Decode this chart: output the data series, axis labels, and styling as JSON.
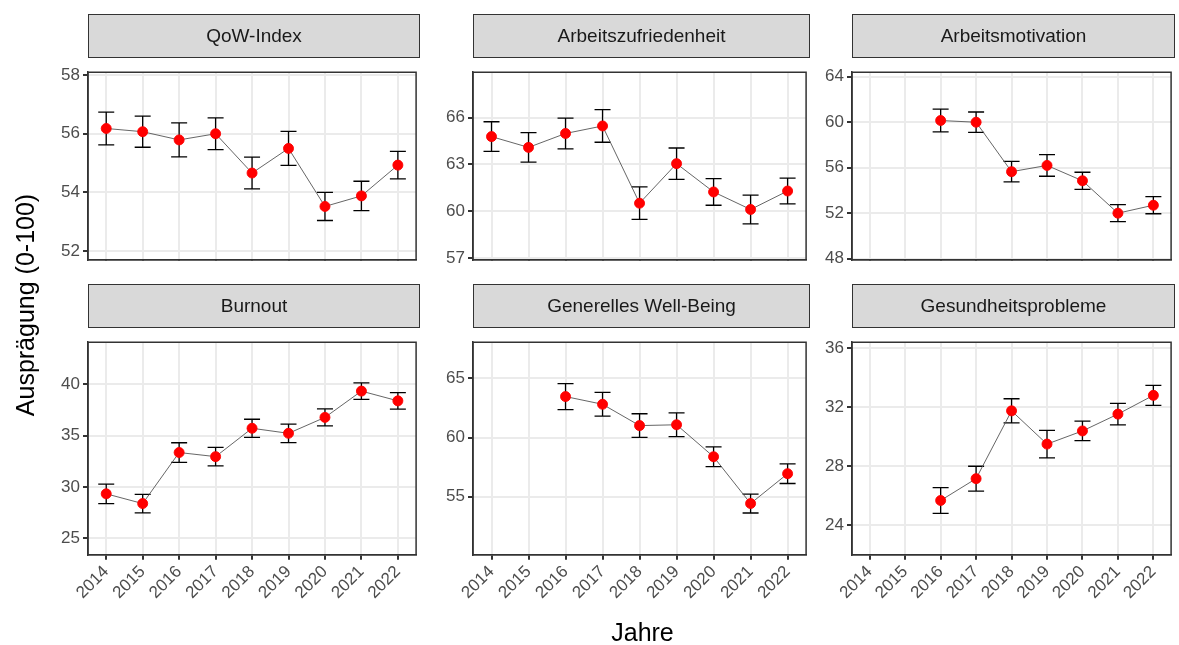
{
  "chart_data": [
    {
      "type": "line",
      "title": "QoW-Index",
      "ylabel": "Ausprägung (0-100)",
      "categories": [
        "2014",
        "2015",
        "2016",
        "2017",
        "2018",
        "2019",
        "2020",
        "2021",
        "2022"
      ],
      "series": [
        {
          "color": "#ff0000",
          "values": [
            56.18,
            56.07,
            55.79,
            56.0,
            54.66,
            55.5,
            53.52,
            53.88,
            54.93
          ],
          "errors": [
            0.56,
            0.53,
            0.58,
            0.54,
            0.54,
            0.58,
            0.48,
            0.5,
            0.47
          ]
        }
      ],
      "ylim": [
        51.7,
        58.1
      ],
      "yticks": [
        52,
        54,
        56,
        58
      ],
      "grid": true,
      "marker": "circle",
      "tick_labels": "y"
    },
    {
      "type": "line",
      "title": "Arbeitszufriedenheit",
      "categories": [
        "2014",
        "2015",
        "2016",
        "2017",
        "2018",
        "2019",
        "2020",
        "2021",
        "2022"
      ],
      "series": [
        {
          "color": "#ff0000",
          "values": [
            64.78,
            64.09,
            64.98,
            65.46,
            60.52,
            63.05,
            61.24,
            60.12,
            61.3
          ],
          "errors": [
            0.95,
            0.94,
            0.98,
            1.04,
            1.04,
            1.0,
            0.85,
            0.92,
            0.82
          ]
        }
      ],
      "ylim": [
        56.9,
        68.9
      ],
      "yticks": [
        57,
        60,
        63,
        66
      ],
      "grid": true,
      "marker": "circle",
      "tick_labels": "y"
    },
    {
      "type": "line",
      "title": "Arbeitsmotivation",
      "categories": [
        "2014",
        "2015",
        "2016",
        "2017",
        "2018",
        "2019",
        "2020",
        "2021",
        "2022"
      ],
      "series": [
        {
          "color": "#ff0000",
          "values": [
            null,
            null,
            60.15,
            60.0,
            55.65,
            56.2,
            54.85,
            52.0,
            52.7
          ],
          "errors": [
            null,
            null,
            1.0,
            0.9,
            0.9,
            0.95,
            0.75,
            0.75,
            0.75
          ]
        }
      ],
      "ylim": [
        47.9,
        64.4
      ],
      "yticks": [
        48,
        52,
        56,
        60,
        64
      ],
      "grid": true,
      "marker": "circle",
      "tick_labels": "y"
    },
    {
      "type": "line",
      "title": "Burnout",
      "categories": [
        "2014",
        "2015",
        "2016",
        "2017",
        "2018",
        "2019",
        "2020",
        "2021",
        "2022"
      ],
      "series": [
        {
          "color": "#ff0000",
          "values": [
            29.34,
            28.39,
            33.36,
            32.96,
            35.72,
            35.23,
            36.78,
            39.34,
            38.39
          ],
          "errors": [
            0.95,
            0.9,
            0.95,
            0.9,
            0.88,
            0.9,
            0.82,
            0.8,
            0.8
          ]
        }
      ],
      "ylim": [
        23.4,
        44.1
      ],
      "yticks": [
        25,
        30,
        35,
        40
      ],
      "grid": true,
      "marker": "circle"
    },
    {
      "type": "line",
      "title": "Generelles Well-Being",
      "xlabel": "Jahre",
      "categories": [
        "2014",
        "2015",
        "2016",
        "2017",
        "2018",
        "2019",
        "2020",
        "2021",
        "2022"
      ],
      "series": [
        {
          "color": "#ff0000",
          "values": [
            null,
            null,
            63.46,
            62.81,
            61.01,
            61.08,
            58.38,
            54.43,
            56.95
          ],
          "errors": [
            null,
            null,
            1.1,
            1.0,
            1.0,
            1.0,
            0.83,
            0.8,
            0.83
          ]
        }
      ],
      "ylim": [
        50.1,
        68.05
      ],
      "yticks": [
        55,
        60,
        65
      ],
      "grid": true,
      "marker": "circle"
    },
    {
      "type": "line",
      "title": "Gesundheitsprobleme",
      "categories": [
        "2014",
        "2015",
        "2016",
        "2017",
        "2018",
        "2019",
        "2020",
        "2021",
        "2022"
      ],
      "series": [
        {
          "color": "#ff0000",
          "values": [
            null,
            null,
            25.68,
            27.16,
            31.75,
            29.5,
            30.39,
            31.53,
            32.8
          ],
          "errors": [
            null,
            null,
            0.87,
            0.84,
            0.82,
            0.93,
            0.66,
            0.73,
            0.68
          ]
        }
      ],
      "ylim": [
        22.0,
        36.4
      ],
      "yticks": [
        24,
        28,
        32,
        36
      ],
      "grid": true,
      "marker": "circle"
    }
  ]
}
